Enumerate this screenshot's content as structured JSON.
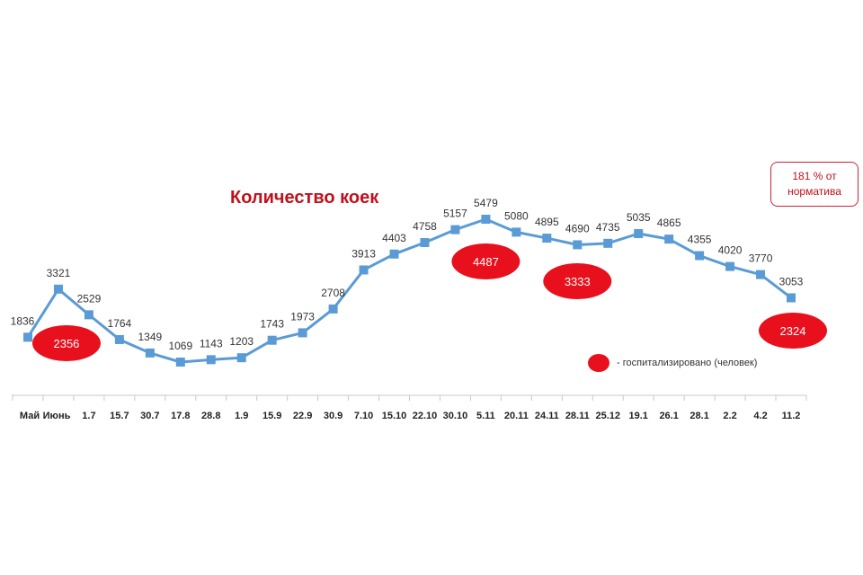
{
  "chart_data": {
    "type": "line",
    "title": "Количество коек",
    "categories": [
      "Май",
      "Июнь",
      "1.7",
      "15.7",
      "30.7",
      "17.8",
      "28.8",
      "1.9",
      "15.9",
      "22.9",
      "30.9",
      "7.10",
      "15.10",
      "22.10",
      "30.10",
      "5.11",
      "20.11",
      "24.11",
      "28.11",
      "25.12",
      "19.1",
      "26.1",
      "28.1",
      "2.2",
      "4.2",
      "11.2"
    ],
    "series": [
      {
        "values": [
          1836,
          3321,
          2529,
          1764,
          1349,
          1069,
          1143,
          1203,
          1743,
          1973,
          2708,
          3913,
          4403,
          4758,
          5157,
          5479,
          5080,
          4895,
          4690,
          4735,
          5035,
          4865,
          4355,
          4020,
          3770,
          3053
        ]
      }
    ],
    "hospitalized": [
      {
        "category_index": 1,
        "value": "2356"
      },
      {
        "category_index": 15,
        "value": "4487"
      },
      {
        "category_index": 18,
        "value": "3333"
      },
      {
        "category_index": 25,
        "value": "2324"
      }
    ],
    "ylim": [
      0,
      6000
    ],
    "grid": false,
    "line_color": "#5b9bd5",
    "marker_color": "#5b9bd5",
    "bubble_color": "#e8101c"
  },
  "note": {
    "line1": "181 % от",
    "line2": "норматива"
  },
  "legend": {
    "label": "- госпитализировано (человек)"
  }
}
